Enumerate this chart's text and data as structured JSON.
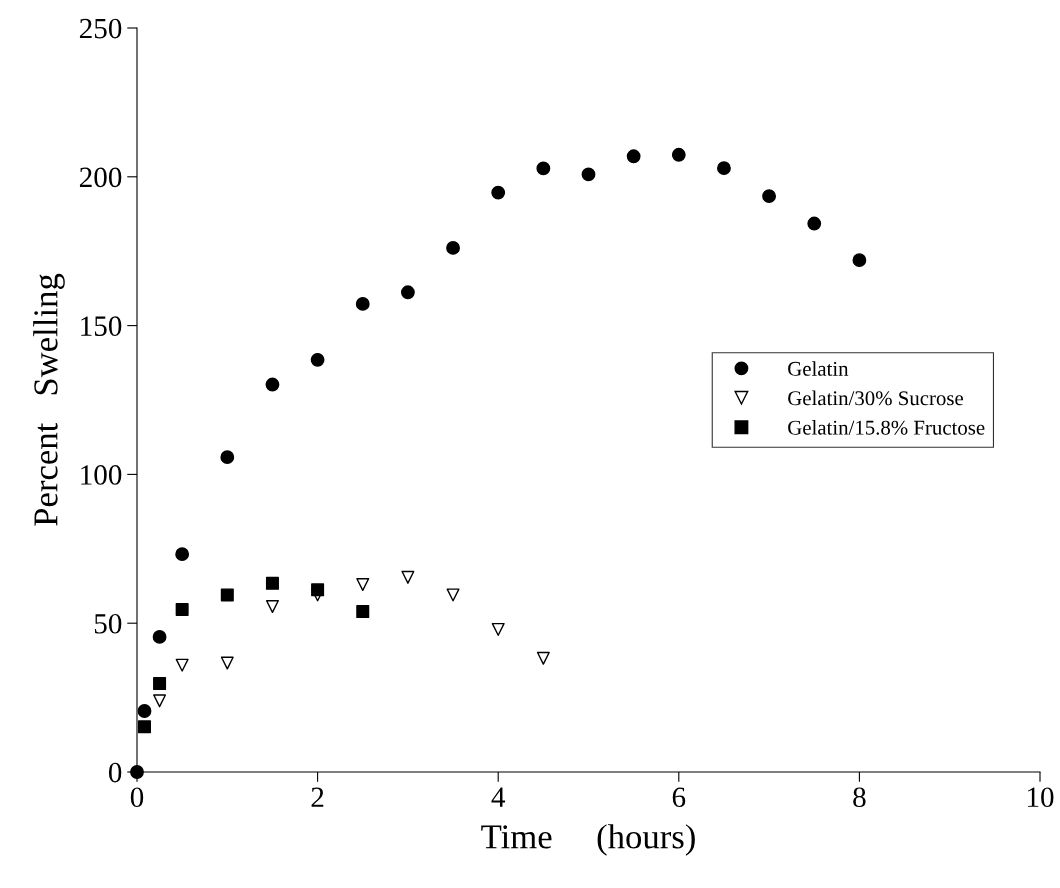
{
  "chart_data": {
    "type": "scatter",
    "xlabel": "Time     (hours)",
    "ylabel": "Percent   Swelling",
    "xlim": [
      0,
      10
    ],
    "xticks": [
      0,
      2,
      4,
      6,
      8,
      10
    ],
    "ylim": [
      0,
      250
    ],
    "yticks": [
      0,
      50,
      100,
      150,
      200,
      250
    ],
    "grid": false,
    "legend": "right",
    "series": [
      {
        "name": "Gelatin",
        "color": "#000000",
        "marker": "circle",
        "x": [
          0,
          0.083,
          0.25,
          0.5,
          1,
          1.5,
          2,
          2.5,
          3,
          3.5,
          4,
          4.5,
          5,
          5.5,
          6,
          6.5,
          7,
          7.5,
          8
        ],
        "values": [
          0,
          20.5,
          45.4,
          73.2,
          105.8,
          130.2,
          138.5,
          157.3,
          161.2,
          176.1,
          194.7,
          202.8,
          200.8,
          206.9,
          207.4,
          202.9,
          193.5,
          184.3,
          172.0
        ]
      },
      {
        "name": "Gelatin/30% Sucrose",
        "color": "#000000",
        "marker": "triangle",
        "x": [
          0.25,
          0.5,
          1,
          1.5,
          2,
          2.5,
          3,
          3.5,
          4,
          4.5
        ],
        "values": [
          23.9,
          35.9,
          36.6,
          55.6,
          59.5,
          63.0,
          65.4,
          59.5,
          47.9,
          38.2
        ]
      },
      {
        "name": "Gelatin/15.8% Fructose",
        "color": "#000000",
        "marker": "square",
        "x": [
          0.083,
          0.25,
          0.5,
          1,
          1.5,
          2,
          2.5
        ],
        "values": [
          15.2,
          29.7,
          54.6,
          59.5,
          63.4,
          61.2,
          53.9
        ]
      }
    ]
  }
}
